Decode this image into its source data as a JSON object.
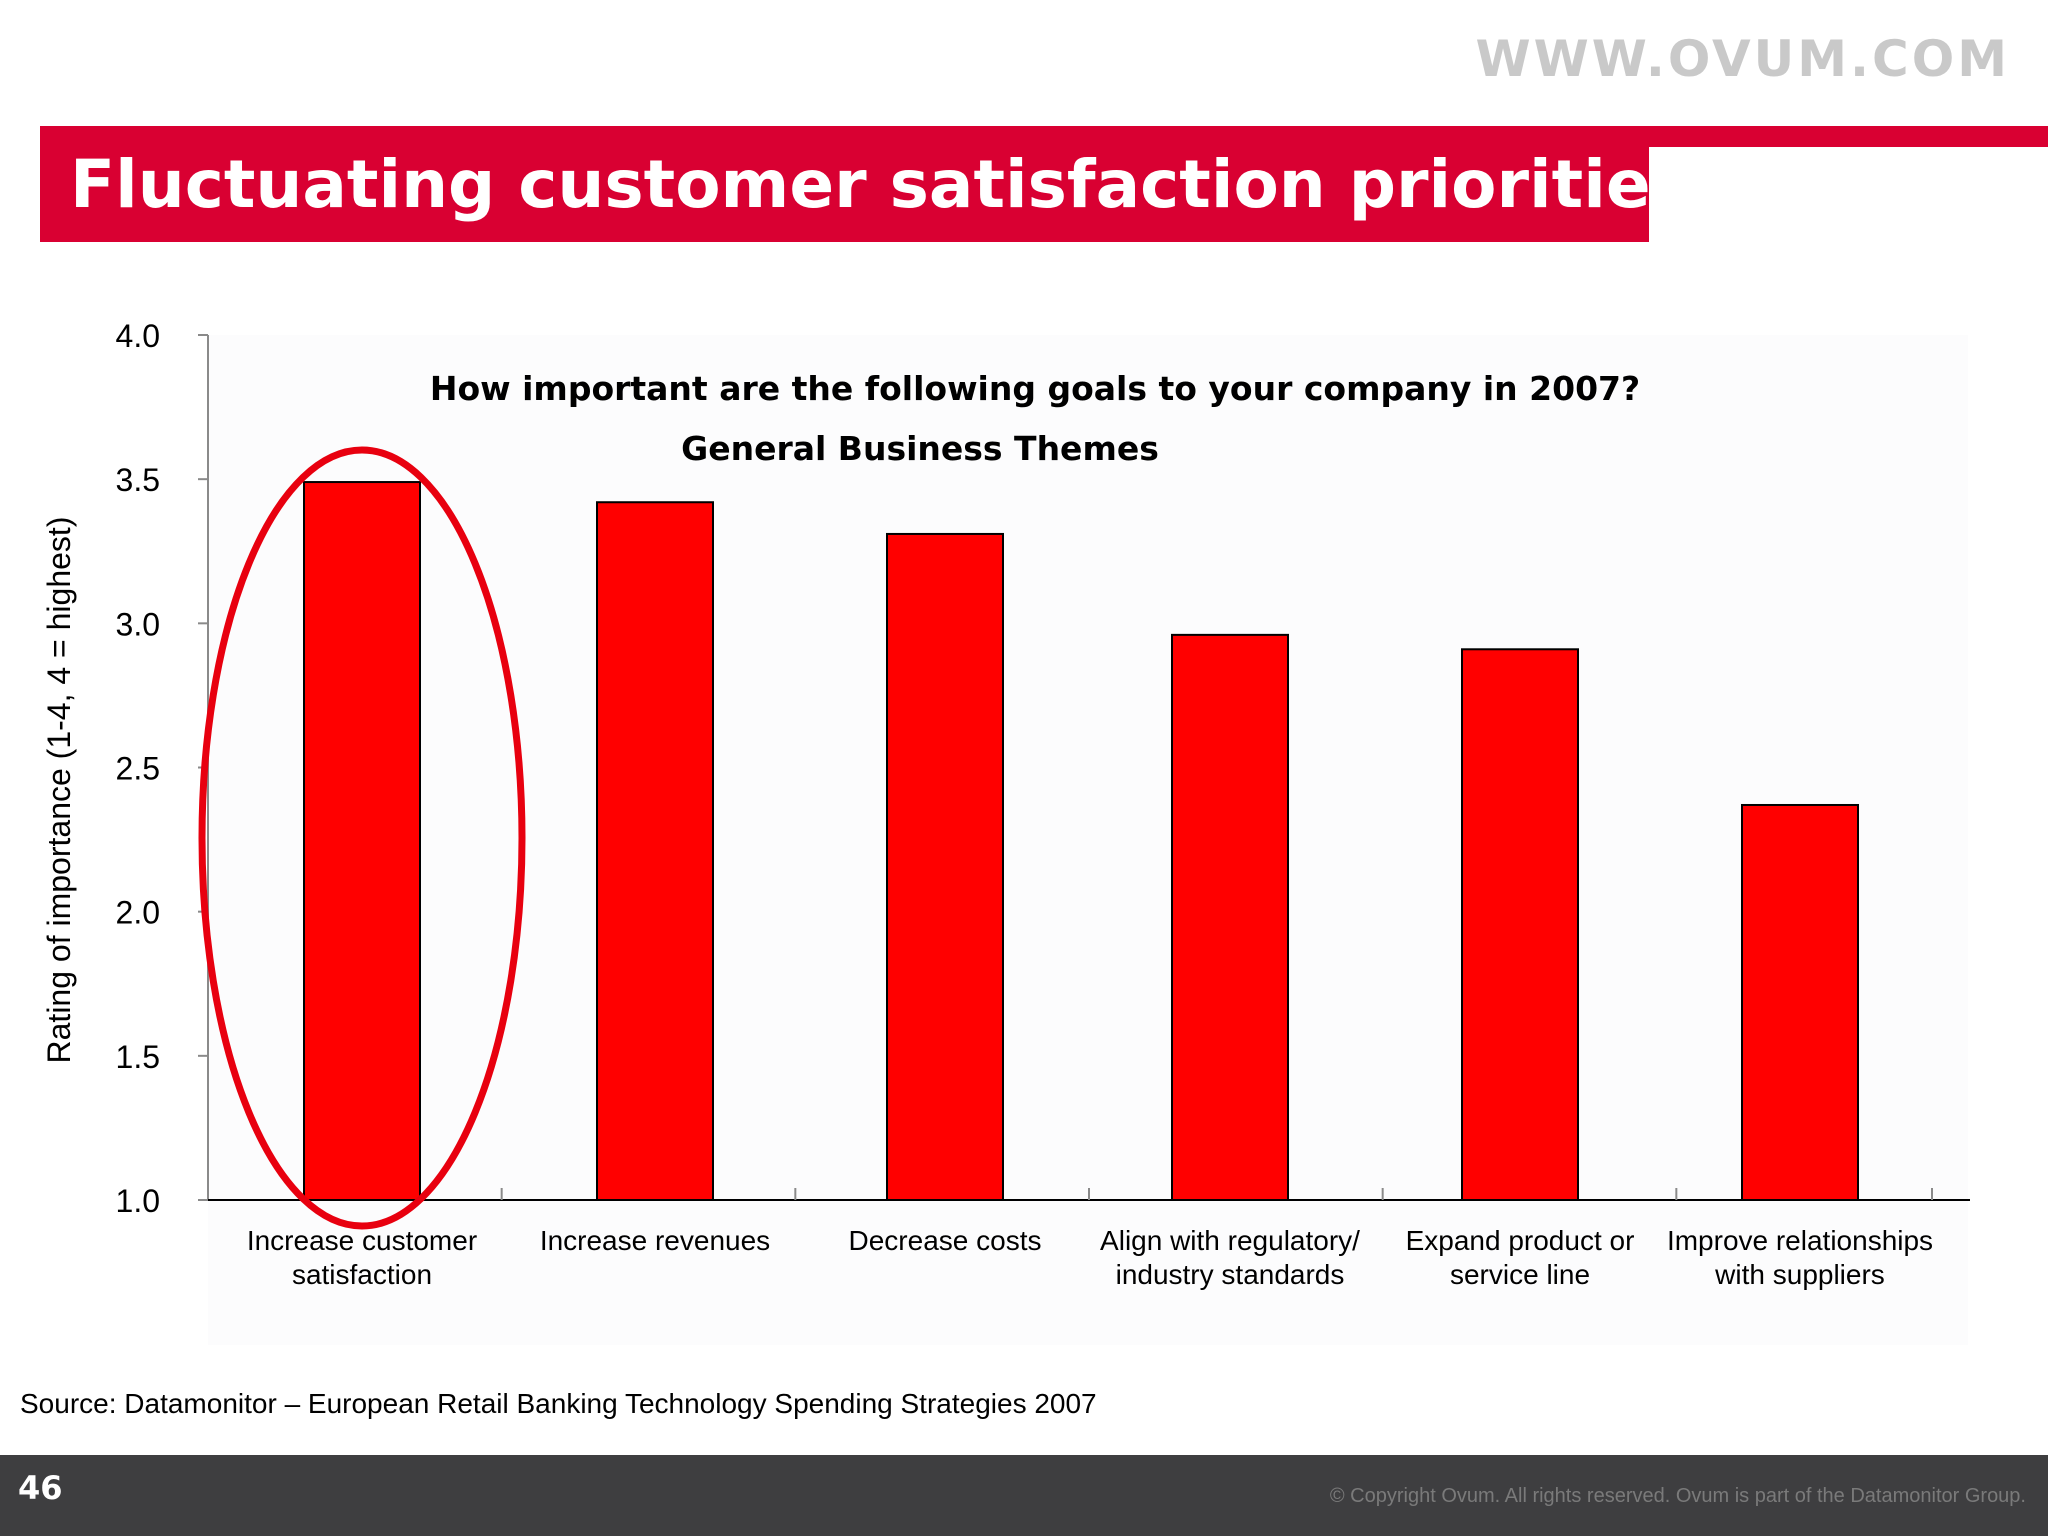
{
  "header": {
    "logo_text": "WWW.OVUM.COM",
    "title": "Fluctuating customer satisfaction priorities..."
  },
  "chart_data": {
    "type": "bar",
    "title": "How important are the following goals to your company in 2007?",
    "subtitle": "General Business Themes",
    "xlabel": "",
    "ylabel": "Rating of importance (1-4, 4 = highest)",
    "ylim": [
      1.0,
      4.0
    ],
    "yticks": [
      "1.0",
      "1.5",
      "2.0",
      "2.5",
      "3.0",
      "3.5",
      "4.0"
    ],
    "categories": [
      [
        "Increase customer",
        "satisfaction"
      ],
      [
        "Increase revenues"
      ],
      [
        "Decrease costs"
      ],
      [
        "Align with regulatory/",
        "industry standards"
      ],
      [
        "Expand product or",
        "service line"
      ],
      [
        "Improve relationships",
        "with suppliers"
      ]
    ],
    "values": [
      3.49,
      3.42,
      3.31,
      2.96,
      2.91,
      2.37
    ],
    "bar_color": "#ff0000",
    "highlight_color": "#e8000f",
    "highlighted_index": 0,
    "grid": false
  },
  "source": "Source: Datamonitor – European Retail Banking Technology Spending Strategies 2007",
  "footer": {
    "page_number": "46",
    "copyright": "© Copyright Ovum. All rights reserved. Ovum is part of the Datamonitor Group."
  }
}
